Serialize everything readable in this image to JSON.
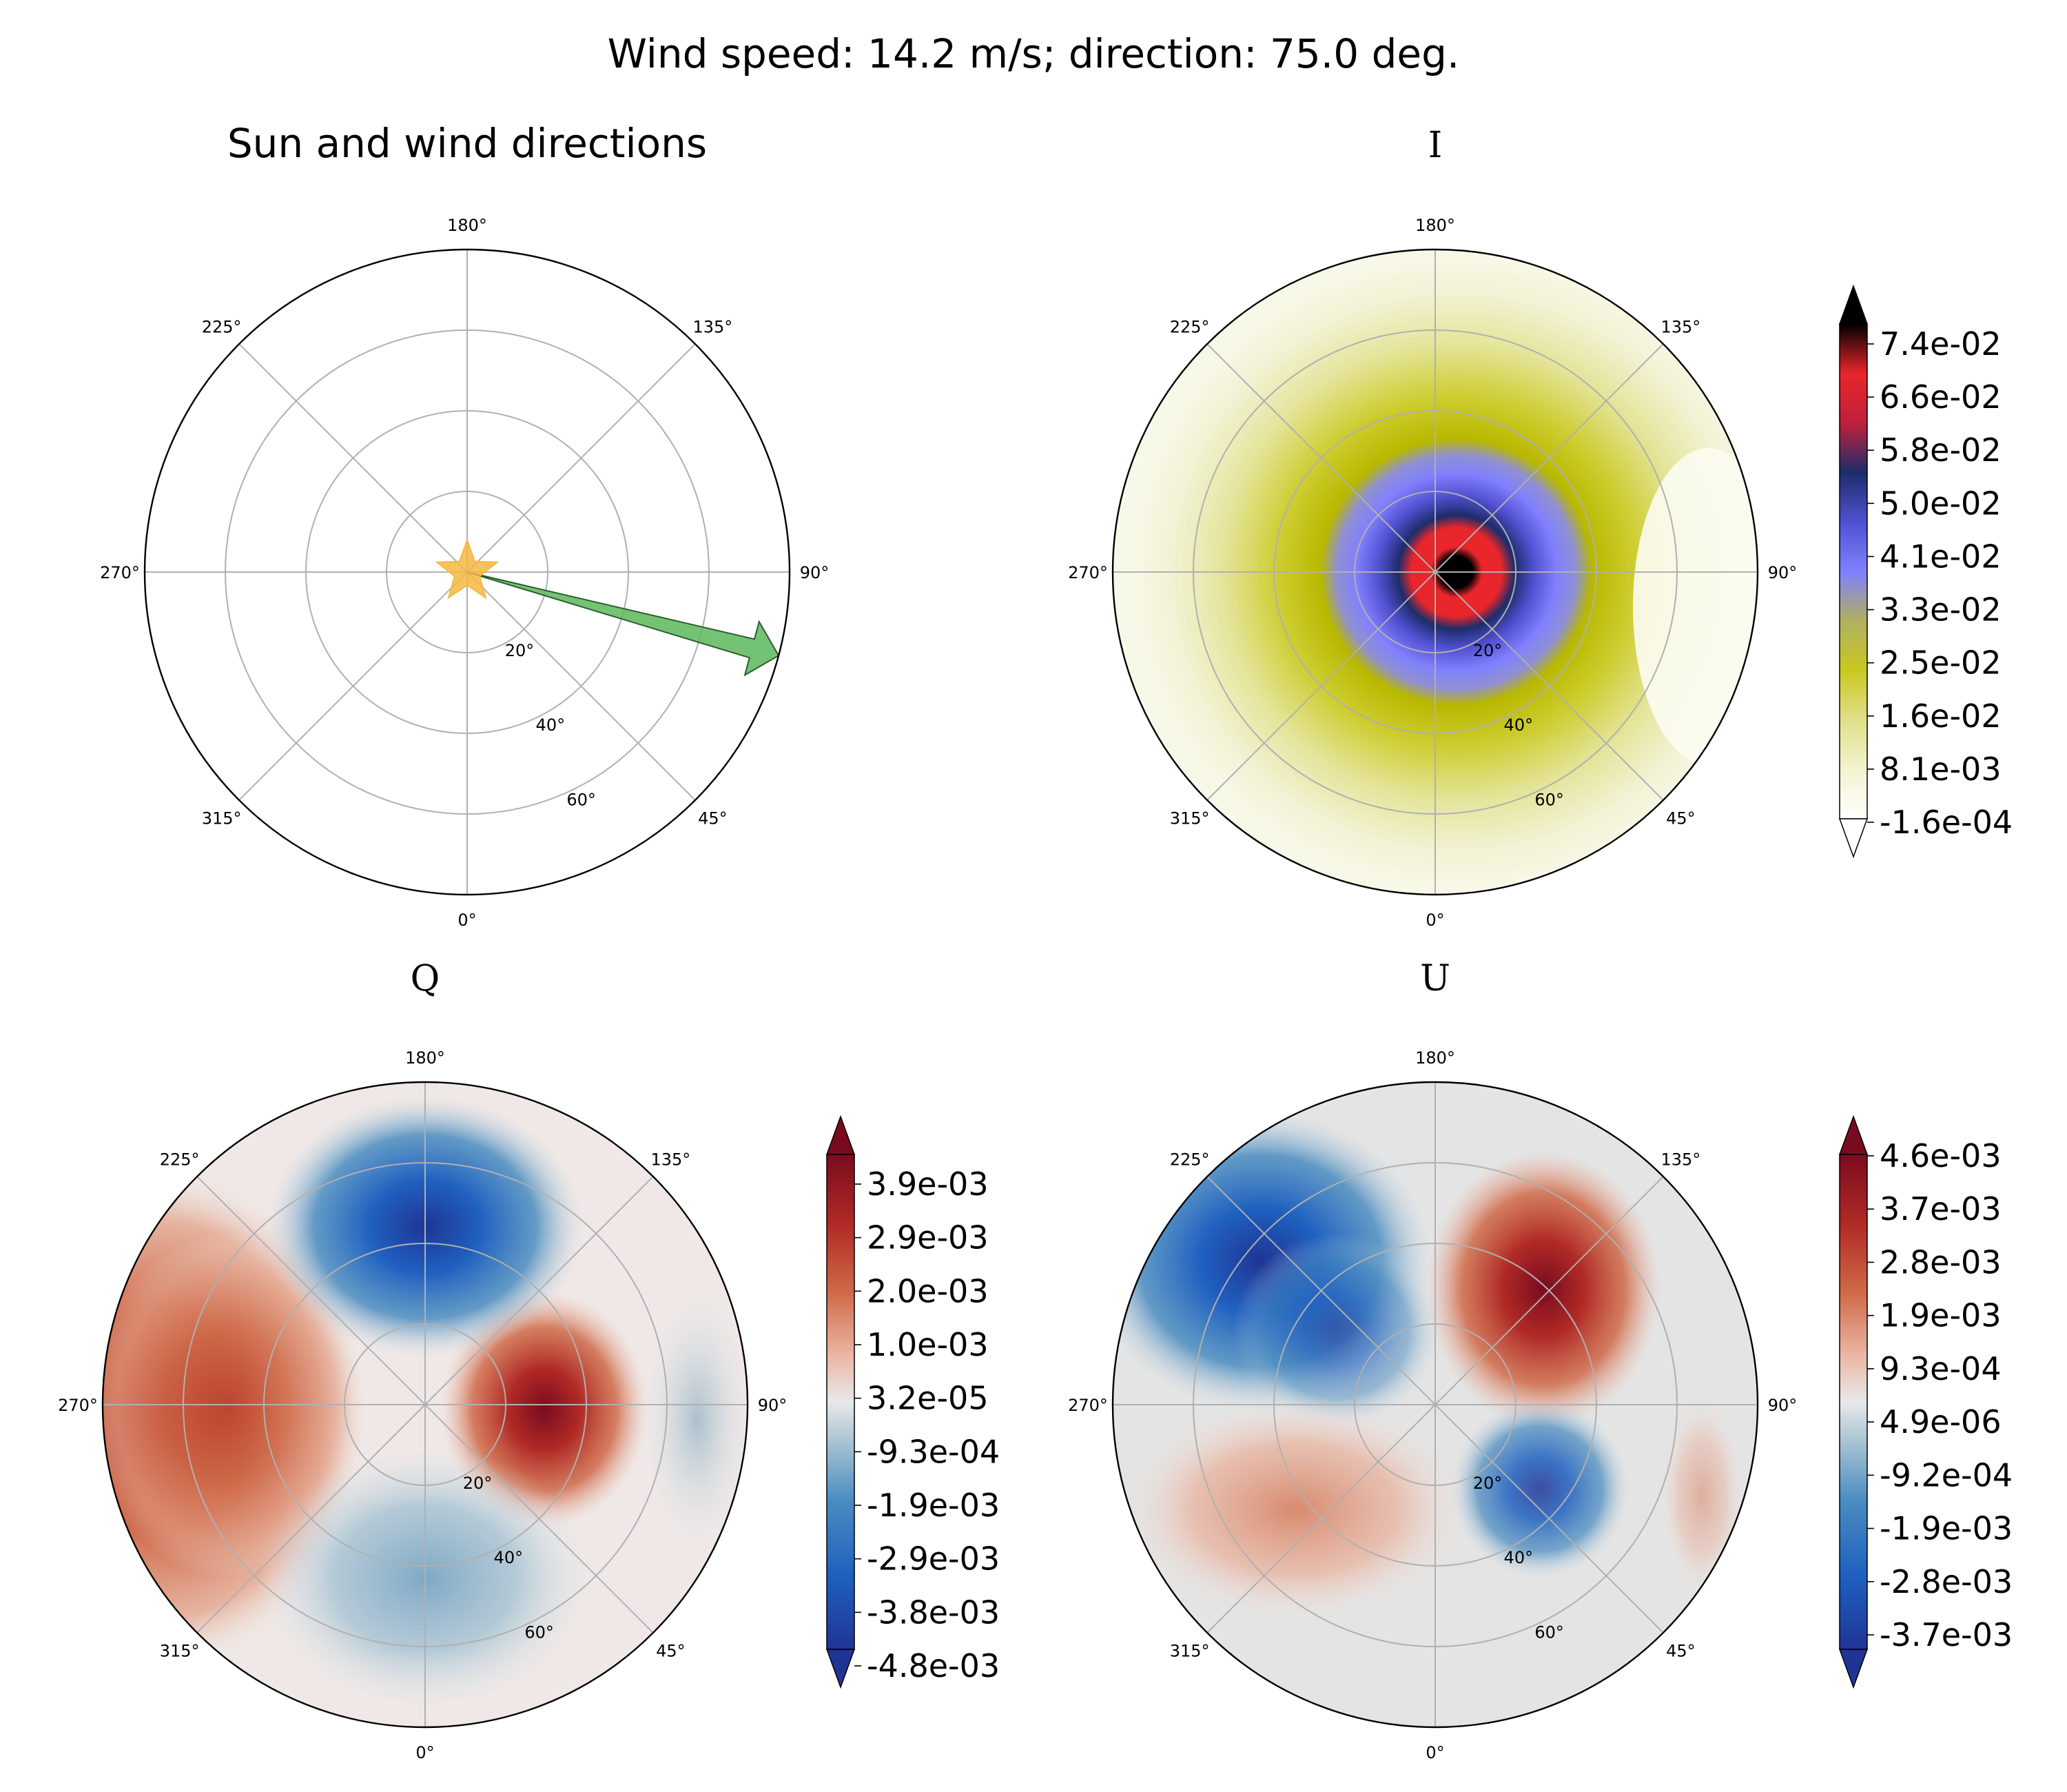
{
  "figure": {
    "suptitle": "Wind speed: 14.2 m/s; direction: 75.0 deg."
  },
  "theta_tick_labels": [
    "0°",
    "45°",
    "90°",
    "135°",
    "180°",
    "225°",
    "270°",
    "315°"
  ],
  "radial_tick_labels": [
    "20°",
    "40°",
    "60°"
  ],
  "chart_data": [
    {
      "type": "polar",
      "title": "Sun and wind directions",
      "rmax": 80,
      "rgrid": [
        20,
        40,
        60
      ],
      "sun": {
        "azimuth_deg": 0,
        "zenith_deg": 0,
        "color": "#f5b942",
        "icon": "star-icon"
      },
      "wind": {
        "speed_m_s": 14.2,
        "direction_deg": 75.0,
        "color": "#5cb85c",
        "icon": "arrow-icon"
      }
    },
    {
      "type": "heatmap",
      "projection": "polar",
      "title": "I",
      "rmax": 80,
      "colorbar": {
        "ticks": [
          "7.4e-02",
          "6.6e-02",
          "5.8e-02",
          "5.0e-02",
          "4.1e-02",
          "3.3e-02",
          "2.5e-02",
          "1.6e-02",
          "8.1e-03",
          "-1.6e-04"
        ],
        "vmin": -0.00016,
        "vmax": 0.082,
        "extend": "both",
        "colors": [
          "#ffffff",
          "#f3f3d0",
          "#d4d455",
          "#b8b800",
          "#8080ff",
          "#5050d0",
          "#1d2d6a",
          "#e8262b",
          "#000000"
        ]
      }
    },
    {
      "type": "heatmap",
      "projection": "polar",
      "title": "Q",
      "rmax": 80,
      "colorbar": {
        "ticks": [
          "3.9e-03",
          "2.9e-03",
          "2.0e-03",
          "1.0e-03",
          "3.2e-05",
          "-9.3e-04",
          "-1.9e-03",
          "-2.9e-03",
          "-3.8e-03",
          "-4.8e-03"
        ],
        "vmin": -0.0048,
        "vmax": 0.0049,
        "extend": "both",
        "colors": [
          "#1f3595",
          "#1f60c0",
          "#4a8cc0",
          "#9ebdd0",
          "#e8e8e8",
          "#eab3a0",
          "#d06a48",
          "#b02a25",
          "#7a0b1f"
        ]
      }
    },
    {
      "type": "heatmap",
      "projection": "polar",
      "title": "U",
      "rmax": 80,
      "colorbar": {
        "ticks": [
          "4.6e-03",
          "3.7e-03",
          "2.8e-03",
          "1.9e-03",
          "9.3e-04",
          "4.9e-06",
          "-9.2e-04",
          "-1.9e-03",
          "-2.8e-03",
          "-3.7e-03"
        ],
        "vmin": -0.0046,
        "vmax": 0.0046,
        "extend": "both",
        "colors": [
          "#1f3595",
          "#1f60c0",
          "#4a8cc0",
          "#9ebdd0",
          "#e8e8e8",
          "#eab3a0",
          "#d06a48",
          "#b02a25",
          "#7a0b1f"
        ]
      }
    }
  ]
}
